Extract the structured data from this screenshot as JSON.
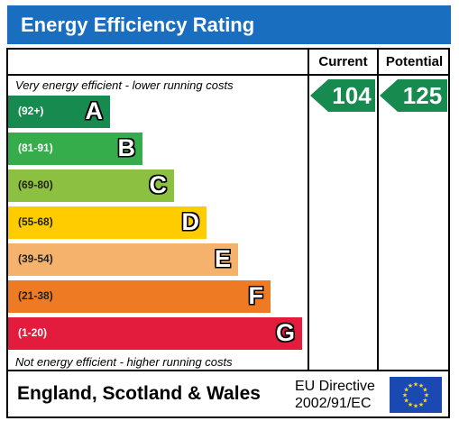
{
  "title": "Energy Efficiency Rating",
  "columns": {
    "current": "Current",
    "potential": "Potential"
  },
  "notes": {
    "top": "Very energy efficient - lower running costs",
    "bottom": "Not energy efficient - higher running costs"
  },
  "footer": {
    "country": "England, Scotland & Wales",
    "directive_line1": "EU Directive",
    "directive_line2": "2002/91/EC",
    "flag_icon": "eu-flag-icon"
  },
  "chart_data": {
    "type": "bar",
    "categories": [
      "A",
      "B",
      "C",
      "D",
      "E",
      "F",
      "G"
    ],
    "ranges": [
      "(92+)",
      "(81-91)",
      "(69-80)",
      "(55-68)",
      "(39-54)",
      "(21-38)",
      "(1-20)"
    ],
    "colors": [
      "#178a4f",
      "#34ad4a",
      "#8cc040",
      "#ffcc00",
      "#f4b26c",
      "#ee7b24",
      "#e31c3d"
    ],
    "current": 104,
    "potential": 125,
    "arrow_color": "#178a4f"
  }
}
